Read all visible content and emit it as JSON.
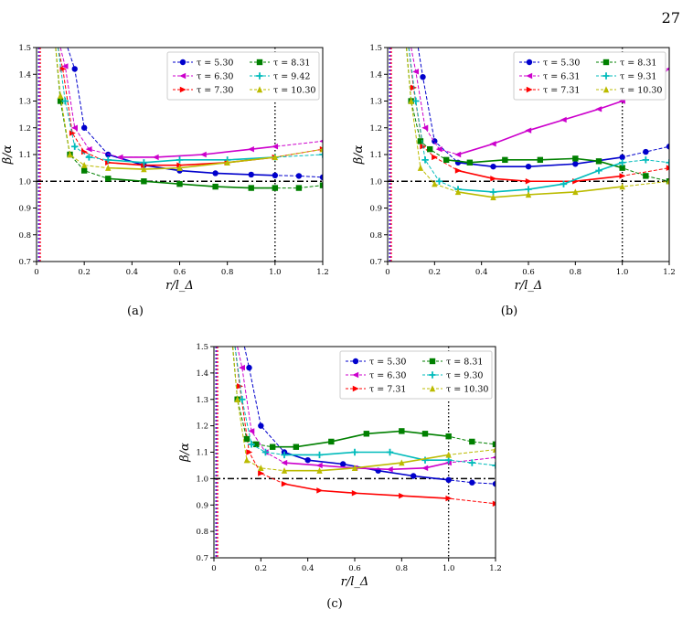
{
  "page_number": "27",
  "chart_data": [
    {
      "type": "line",
      "panel_caption": "(a)",
      "xlabel": "r/l_Δ",
      "ylabel": "β/α",
      "xlim": [
        0,
        1.2
      ],
      "ylim": [
        0.7,
        1.5
      ],
      "xticks": [
        "0",
        "0.2",
        "0.4",
        "0.6",
        "0.8",
        "1.0",
        "1.2"
      ],
      "yticks": [
        "0.7",
        "0.8",
        "0.9",
        "1.0",
        "1.1",
        "1.2",
        "1.3",
        "1.4",
        "1.5"
      ],
      "reference_hline": 1.0,
      "reference_vline": 1.0,
      "legend_position": "top-right",
      "series": [
        {
          "name": "τ = 5.30",
          "color": "#0000cc",
          "marker": "circle",
          "x": [
            0.13,
            0.16,
            0.2,
            0.3,
            0.45,
            0.6,
            0.75,
            0.9,
            1.0,
            1.1,
            1.2
          ],
          "y": [
            1.5,
            1.42,
            1.2,
            1.1,
            1.06,
            1.04,
            1.03,
            1.025,
            1.022,
            1.02,
            1.015
          ]
        },
        {
          "name": "τ = 6.30",
          "color": "#cc00cc",
          "marker": "triangle-left",
          "x": [
            0.1,
            0.12,
            0.16,
            0.22,
            0.35,
            0.5,
            0.7,
            0.9,
            1.0,
            1.2
          ],
          "y": [
            1.5,
            1.43,
            1.2,
            1.12,
            1.09,
            1.09,
            1.1,
            1.12,
            1.13,
            1.15
          ]
        },
        {
          "name": "τ = 7.30",
          "color": "#ff0000",
          "marker": "triangle-right",
          "x": [
            0.09,
            0.11,
            0.15,
            0.2,
            0.3,
            0.45,
            0.6,
            0.8,
            1.0,
            1.2
          ],
          "y": [
            1.5,
            1.42,
            1.18,
            1.11,
            1.07,
            1.06,
            1.06,
            1.07,
            1.09,
            1.12
          ]
        },
        {
          "name": "τ = 8.31",
          "color": "#008000",
          "marker": "square",
          "x": [
            0.08,
            0.1,
            0.14,
            0.2,
            0.3,
            0.45,
            0.6,
            0.75,
            0.9,
            1.0,
            1.1,
            1.2
          ],
          "y": [
            1.5,
            1.3,
            1.1,
            1.04,
            1.01,
            1.0,
            0.99,
            0.98,
            0.975,
            0.975,
            0.975,
            0.985
          ]
        },
        {
          "name": "τ = 9.42",
          "color": "#00bbbb",
          "marker": "plus",
          "x": [
            0.09,
            0.12,
            0.16,
            0.22,
            0.3,
            0.45,
            0.6,
            0.8,
            1.0,
            1.2
          ],
          "y": [
            1.5,
            1.3,
            1.13,
            1.09,
            1.08,
            1.07,
            1.08,
            1.08,
            1.09,
            1.1
          ]
        },
        {
          "name": "τ = 10.30",
          "color": "#bbbb00",
          "marker": "triangle-up",
          "x": [
            0.08,
            0.1,
            0.14,
            0.2,
            0.3,
            0.45,
            0.6,
            0.8,
            1.0,
            1.2
          ],
          "y": [
            1.5,
            1.32,
            1.1,
            1.06,
            1.05,
            1.045,
            1.05,
            1.07,
            1.09,
            1.12
          ]
        }
      ]
    },
    {
      "type": "line",
      "panel_caption": "(b)",
      "xlabel": "r/l_Δ",
      "ylabel": "β/α",
      "xlim": [
        0,
        1.2
      ],
      "ylim": [
        0.7,
        1.5
      ],
      "xticks": [
        "0",
        "0.2",
        "0.4",
        "0.6",
        "0.8",
        "1.0",
        "1.2"
      ],
      "yticks": [
        "0.7",
        "0.8",
        "0.9",
        "1.0",
        "1.1",
        "1.2",
        "1.3",
        "1.4",
        "1.5"
      ],
      "reference_hline": 1.0,
      "reference_vline": 1.0,
      "legend_position": "top-right",
      "series": [
        {
          "name": "τ = 5.30",
          "color": "#0000cc",
          "marker": "circle",
          "x": [
            0.13,
            0.15,
            0.2,
            0.3,
            0.45,
            0.6,
            0.8,
            1.0,
            1.1,
            1.2
          ],
          "y": [
            1.5,
            1.39,
            1.15,
            1.07,
            1.055,
            1.055,
            1.065,
            1.09,
            1.11,
            1.13
          ]
        },
        {
          "name": "τ = 6.31",
          "color": "#cc00cc",
          "marker": "triangle-left",
          "x": [
            0.1,
            0.12,
            0.16,
            0.22,
            0.3,
            0.45,
            0.6,
            0.75,
            0.9,
            1.0,
            1.2
          ],
          "y": [
            1.5,
            1.41,
            1.2,
            1.12,
            1.1,
            1.14,
            1.19,
            1.23,
            1.27,
            1.3,
            1.42
          ]
        },
        {
          "name": "τ = 7.31",
          "color": "#ff0000",
          "marker": "triangle-right",
          "x": [
            0.09,
            0.11,
            0.15,
            0.2,
            0.3,
            0.45,
            0.6,
            0.8,
            1.0,
            1.2
          ],
          "y": [
            1.5,
            1.35,
            1.13,
            1.09,
            1.04,
            1.01,
            1.0,
            1.0,
            1.02,
            1.05
          ]
        },
        {
          "name": "τ = 8.31",
          "color": "#008000",
          "marker": "square",
          "x": [
            0.08,
            0.1,
            0.14,
            0.18,
            0.25,
            0.35,
            0.5,
            0.65,
            0.8,
            0.9,
            1.0,
            1.1,
            1.2
          ],
          "y": [
            1.5,
            1.3,
            1.15,
            1.12,
            1.08,
            1.07,
            1.08,
            1.08,
            1.085,
            1.075,
            1.05,
            1.02,
            1.0
          ]
        },
        {
          "name": "τ = 9.31",
          "color": "#00bbbb",
          "marker": "plus",
          "x": [
            0.09,
            0.12,
            0.16,
            0.22,
            0.3,
            0.45,
            0.6,
            0.75,
            0.9,
            1.0,
            1.1,
            1.2
          ],
          "y": [
            1.5,
            1.3,
            1.08,
            1.0,
            0.97,
            0.96,
            0.97,
            0.99,
            1.04,
            1.07,
            1.08,
            1.07
          ]
        },
        {
          "name": "τ = 10.30",
          "color": "#bbbb00",
          "marker": "triangle-up",
          "x": [
            0.08,
            0.1,
            0.14,
            0.2,
            0.3,
            0.45,
            0.6,
            0.8,
            1.0,
            1.2
          ],
          "y": [
            1.5,
            1.3,
            1.05,
            0.99,
            0.96,
            0.94,
            0.95,
            0.96,
            0.98,
            1.0
          ]
        }
      ]
    },
    {
      "type": "line",
      "panel_caption": "(c)",
      "xlabel": "r/l_Δ",
      "ylabel": "β/α",
      "xlim": [
        0,
        1.2
      ],
      "ylim": [
        0.7,
        1.5
      ],
      "xticks": [
        "0",
        "0.2",
        "0.4",
        "0.6",
        "0.8",
        "1.0",
        "1.2"
      ],
      "yticks": [
        "0.7",
        "0.8",
        "0.9",
        "1.0",
        "1.1",
        "1.2",
        "1.3",
        "1.4",
        "1.5"
      ],
      "reference_hline": 1.0,
      "reference_vline": 1.0,
      "legend_position": "top-right",
      "series": [
        {
          "name": "τ = 5.30",
          "color": "#0000cc",
          "marker": "circle",
          "x": [
            0.13,
            0.15,
            0.2,
            0.3,
            0.4,
            0.55,
            0.7,
            0.85,
            1.0,
            1.1,
            1.2
          ],
          "y": [
            1.5,
            1.42,
            1.2,
            1.1,
            1.07,
            1.055,
            1.03,
            1.01,
            0.995,
            0.985,
            0.98
          ]
        },
        {
          "name": "τ = 6.30",
          "color": "#cc00cc",
          "marker": "triangle-left",
          "x": [
            0.1,
            0.12,
            0.16,
            0.22,
            0.3,
            0.45,
            0.6,
            0.75,
            0.9,
            1.0,
            1.2
          ],
          "y": [
            1.5,
            1.42,
            1.18,
            1.1,
            1.06,
            1.05,
            1.04,
            1.035,
            1.04,
            1.06,
            1.08
          ]
        },
        {
          "name": "τ = 7.31",
          "color": "#ff0000",
          "marker": "triangle-right",
          "x": [
            0.09,
            0.11,
            0.15,
            0.2,
            0.3,
            0.45,
            0.6,
            0.8,
            1.0,
            1.2
          ],
          "y": [
            1.5,
            1.35,
            1.1,
            1.02,
            0.98,
            0.955,
            0.945,
            0.935,
            0.925,
            0.905
          ]
        },
        {
          "name": "τ = 8.31",
          "color": "#008000",
          "marker": "square",
          "x": [
            0.08,
            0.1,
            0.14,
            0.18,
            0.25,
            0.35,
            0.5,
            0.65,
            0.8,
            0.9,
            1.0,
            1.1,
            1.2
          ],
          "y": [
            1.5,
            1.3,
            1.15,
            1.13,
            1.12,
            1.12,
            1.14,
            1.17,
            1.18,
            1.17,
            1.16,
            1.14,
            1.13
          ]
        },
        {
          "name": "τ = 9.30",
          "color": "#00bbbb",
          "marker": "plus",
          "x": [
            0.09,
            0.12,
            0.16,
            0.22,
            0.3,
            0.45,
            0.6,
            0.75,
            0.9,
            1.0,
            1.1,
            1.2
          ],
          "y": [
            1.5,
            1.3,
            1.13,
            1.1,
            1.09,
            1.09,
            1.1,
            1.1,
            1.07,
            1.07,
            1.06,
            1.05
          ]
        },
        {
          "name": "τ = 10.30",
          "color": "#bbbb00",
          "marker": "triangle-up",
          "x": [
            0.08,
            0.1,
            0.14,
            0.2,
            0.3,
            0.45,
            0.6,
            0.8,
            1.0,
            1.2
          ],
          "y": [
            1.5,
            1.3,
            1.07,
            1.04,
            1.03,
            1.03,
            1.04,
            1.06,
            1.09,
            1.11
          ]
        }
      ]
    }
  ]
}
